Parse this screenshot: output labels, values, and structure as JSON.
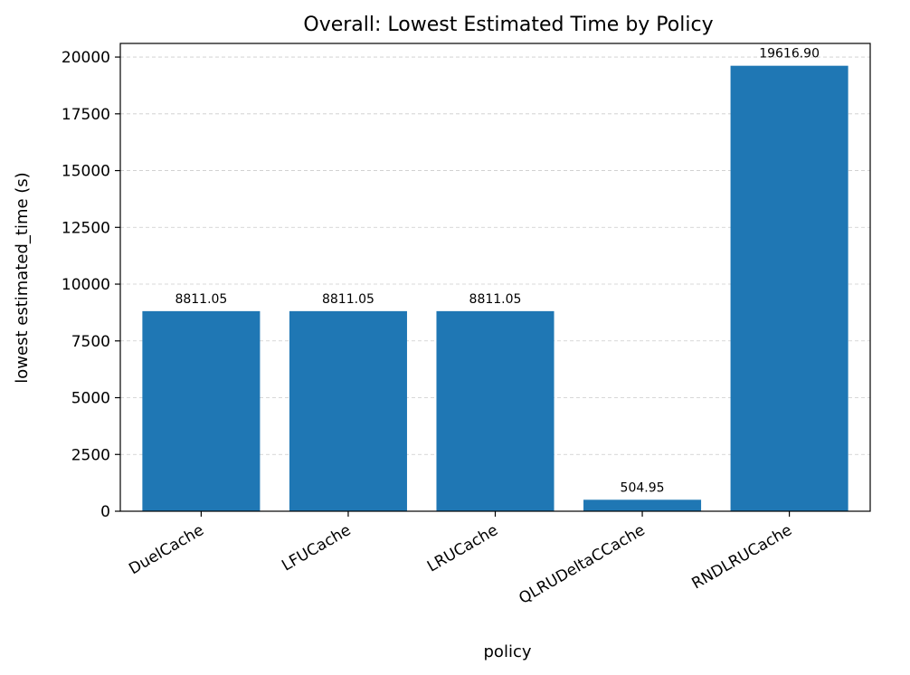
{
  "chart_data": {
    "type": "bar",
    "title": "Overall: Lowest Estimated Time by Policy",
    "xlabel": "policy",
    "ylabel": "lowest estimated_time (s)",
    "categories": [
      "DuelCache",
      "LFUCache",
      "LRUCache",
      "QLRUDeltaCCache",
      "RNDLRUCache"
    ],
    "values": [
      8811.05,
      8811.05,
      8811.05,
      504.95,
      19616.9
    ],
    "value_labels": [
      "8811.05",
      "8811.05",
      "8811.05",
      "504.95",
      "19616.90"
    ],
    "ylim": [
      0,
      20600
    ],
    "yticks": [
      0,
      2500,
      5000,
      7500,
      10000,
      12500,
      15000,
      17500,
      20000
    ],
    "grid": "y",
    "legend": "none",
    "bar_color": "#1f77b4"
  }
}
